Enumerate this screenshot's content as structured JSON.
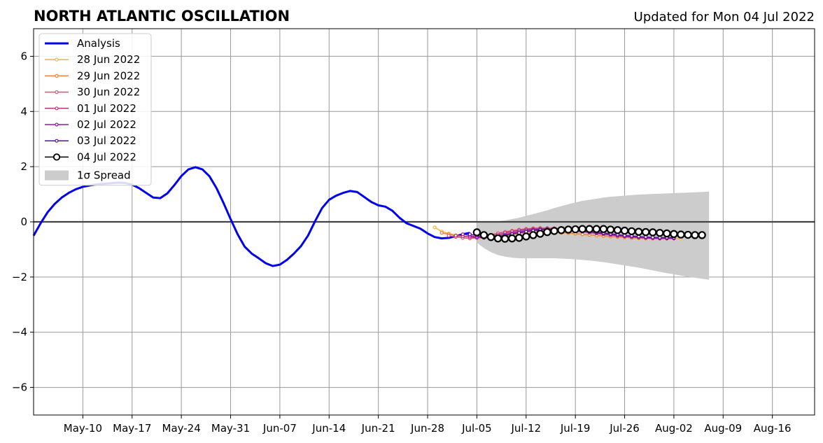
{
  "chart_data": {
    "type": "line",
    "title": "NORTH ATLANTIC OSCILLATION",
    "subtitle": "Updated for Mon 04 Jul 2022",
    "xlabel": "",
    "ylabel": "",
    "xlim": [
      "2022-05-03",
      "2022-08-22"
    ],
    "ylim": [
      -7,
      7
    ],
    "x_ticks": [
      "May-10",
      "May-17",
      "May-24",
      "May-31",
      "Jun-07",
      "Jun-14",
      "Jun-21",
      "Jun-28",
      "Jul-05",
      "Jul-12",
      "Jul-19",
      "Jul-26",
      "Aug-02",
      "Aug-09",
      "Aug-16"
    ],
    "y_ticks": [
      -6,
      -4,
      -2,
      0,
      2,
      4,
      6
    ],
    "y_tick_labels": [
      "−6",
      "−4",
      "−2",
      "0",
      "2",
      "4",
      "6"
    ],
    "grid": true,
    "legend_position": "top-left",
    "zero_line": 0,
    "analysis": {
      "name": "Analysis",
      "color": "#0000ee",
      "points": [
        [
          "2022-05-03",
          -0.5
        ],
        [
          "2022-05-04",
          -0.05
        ],
        [
          "2022-05-05",
          0.35
        ],
        [
          "2022-05-06",
          0.65
        ],
        [
          "2022-05-07",
          0.88
        ],
        [
          "2022-05-08",
          1.05
        ],
        [
          "2022-05-09",
          1.18
        ],
        [
          "2022-05-10",
          1.27
        ],
        [
          "2022-05-11",
          1.32
        ],
        [
          "2022-05-12",
          1.36
        ],
        [
          "2022-05-13",
          1.38
        ],
        [
          "2022-05-14",
          1.4
        ],
        [
          "2022-05-15",
          1.42
        ],
        [
          "2022-05-16",
          1.41
        ],
        [
          "2022-05-17",
          1.35
        ],
        [
          "2022-05-18",
          1.22
        ],
        [
          "2022-05-19",
          1.05
        ],
        [
          "2022-05-20",
          0.88
        ],
        [
          "2022-05-21",
          0.86
        ],
        [
          "2022-05-22",
          1.03
        ],
        [
          "2022-05-23",
          1.33
        ],
        [
          "2022-05-24",
          1.66
        ],
        [
          "2022-05-25",
          1.9
        ],
        [
          "2022-05-26",
          1.98
        ],
        [
          "2022-05-27",
          1.9
        ],
        [
          "2022-05-28",
          1.65
        ],
        [
          "2022-05-29",
          1.22
        ],
        [
          "2022-05-30",
          0.68
        ],
        [
          "2022-05-31",
          0.1
        ],
        [
          "2022-06-01",
          -0.45
        ],
        [
          "2022-06-02",
          -0.9
        ],
        [
          "2022-06-03",
          -1.15
        ],
        [
          "2022-06-04",
          -1.32
        ],
        [
          "2022-06-05",
          -1.5
        ],
        [
          "2022-06-06",
          -1.6
        ],
        [
          "2022-06-07",
          -1.55
        ],
        [
          "2022-06-08",
          -1.38
        ],
        [
          "2022-06-09",
          -1.15
        ],
        [
          "2022-06-10",
          -0.88
        ],
        [
          "2022-06-11",
          -0.5
        ],
        [
          "2022-06-12",
          0.02
        ],
        [
          "2022-06-13",
          0.5
        ],
        [
          "2022-06-14",
          0.8
        ],
        [
          "2022-06-15",
          0.95
        ],
        [
          "2022-06-16",
          1.05
        ],
        [
          "2022-06-17",
          1.12
        ],
        [
          "2022-06-18",
          1.08
        ],
        [
          "2022-06-19",
          0.9
        ],
        [
          "2022-06-20",
          0.72
        ],
        [
          "2022-06-21",
          0.6
        ],
        [
          "2022-06-22",
          0.55
        ],
        [
          "2022-06-23",
          0.4
        ],
        [
          "2022-06-24",
          0.15
        ],
        [
          "2022-06-25",
          -0.05
        ],
        [
          "2022-06-26",
          -0.15
        ],
        [
          "2022-06-27",
          -0.25
        ],
        [
          "2022-06-28",
          -0.42
        ],
        [
          "2022-06-29",
          -0.55
        ],
        [
          "2022-06-30",
          -0.6
        ],
        [
          "2022-07-01",
          -0.58
        ],
        [
          "2022-07-02",
          -0.52
        ],
        [
          "2022-07-03",
          -0.45
        ],
        [
          "2022-07-04",
          -0.4
        ]
      ]
    },
    "forecasts": [
      {
        "name": "28 Jun 2022",
        "color": "#f8b238",
        "start": "2022-06-29",
        "values": [
          -0.2,
          -0.35,
          -0.42,
          -0.48,
          -0.52,
          -0.54,
          -0.55,
          -0.55,
          -0.54,
          -0.52,
          -0.49,
          -0.46,
          -0.43,
          -0.4,
          -0.38,
          -0.37,
          -0.37,
          -0.38,
          -0.4,
          -0.42,
          -0.44,
          -0.46,
          -0.48,
          -0.5,
          -0.52,
          -0.54,
          -0.55,
          -0.57,
          -0.58,
          -0.6,
          -0.61,
          -0.62,
          -0.62,
          -0.62,
          -0.61,
          -0.6
        ]
      },
      {
        "name": "29 Jun 2022",
        "color": "#f07f42",
        "start": "2022-06-30",
        "values": [
          -0.4,
          -0.45,
          -0.5,
          -0.53,
          -0.55,
          -0.55,
          -0.53,
          -0.5,
          -0.46,
          -0.42,
          -0.38,
          -0.35,
          -0.33,
          -0.32,
          -0.32,
          -0.33,
          -0.35,
          -0.37,
          -0.4,
          -0.42,
          -0.45,
          -0.47,
          -0.49,
          -0.51,
          -0.53,
          -0.55,
          -0.56,
          -0.58,
          -0.59,
          -0.6,
          -0.6,
          -0.6,
          -0.59,
          -0.58
        ]
      },
      {
        "name": "30 Jun 2022",
        "color": "#db5370",
        "start": "2022-07-01",
        "values": [
          -0.5,
          -0.55,
          -0.58,
          -0.6,
          -0.58,
          -0.53,
          -0.47,
          -0.41,
          -0.36,
          -0.32,
          -0.28,
          -0.25,
          -0.23,
          -0.22,
          -0.22,
          -0.23,
          -0.25,
          -0.27,
          -0.3,
          -0.33,
          -0.36,
          -0.39,
          -0.42,
          -0.45,
          -0.48,
          -0.51,
          -0.53,
          -0.55,
          -0.57,
          -0.58,
          -0.59,
          -0.6,
          -0.6
        ]
      },
      {
        "name": "01 Jul 2022",
        "color": "#b73481",
        "start": "2022-07-02",
        "values": [
          -0.5,
          -0.52,
          -0.55,
          -0.58,
          -0.57,
          -0.52,
          -0.46,
          -0.4,
          -0.35,
          -0.31,
          -0.28,
          -0.26,
          -0.25,
          -0.25,
          -0.26,
          -0.28,
          -0.3,
          -0.33,
          -0.36,
          -0.39,
          -0.42,
          -0.45,
          -0.48,
          -0.51,
          -0.53,
          -0.55,
          -0.57,
          -0.58,
          -0.59,
          -0.6,
          -0.6,
          -0.6
        ]
      },
      {
        "name": "02 Jul 2022",
        "color": "#8e1ba0",
        "start": "2022-07-03",
        "values": [
          -0.45,
          -0.5,
          -0.55,
          -0.58,
          -0.56,
          -0.51,
          -0.46,
          -0.41,
          -0.36,
          -0.32,
          -0.29,
          -0.27,
          -0.26,
          -0.26,
          -0.27,
          -0.29,
          -0.31,
          -0.34,
          -0.37,
          -0.4,
          -0.43,
          -0.46,
          -0.49,
          -0.52,
          -0.54,
          -0.56,
          -0.58,
          -0.59,
          -0.6,
          -0.6,
          -0.6
        ]
      },
      {
        "name": "03 Jul 2022",
        "color": "#5a0d9c",
        "start": "2022-07-04",
        "values": [
          -0.45,
          -0.5,
          -0.55,
          -0.57,
          -0.55,
          -0.5,
          -0.45,
          -0.4,
          -0.36,
          -0.32,
          -0.29,
          -0.27,
          -0.26,
          -0.26,
          -0.27,
          -0.29,
          -0.31,
          -0.34,
          -0.37,
          -0.4,
          -0.43,
          -0.46,
          -0.49,
          -0.51,
          -0.53,
          -0.55,
          -0.56,
          -0.57,
          -0.57,
          -0.57
        ]
      },
      {
        "name": "04 Jul 2022",
        "color": "#000000",
        "start": "2022-07-05",
        "values": [
          -0.38,
          -0.48,
          -0.55,
          -0.6,
          -0.61,
          -0.6,
          -0.58,
          -0.53,
          -0.48,
          -0.43,
          -0.37,
          -0.33,
          -0.3,
          -0.28,
          -0.27,
          -0.26,
          -0.26,
          -0.26,
          -0.26,
          -0.28,
          -0.3,
          -0.32,
          -0.34,
          -0.36,
          -0.37,
          -0.38,
          -0.4,
          -0.42,
          -0.44,
          -0.46,
          -0.47,
          -0.48,
          -0.48
        ]
      }
    ],
    "spread": {
      "name": "1σ Spread",
      "color": "#cccccc",
      "start": "2022-07-05",
      "upper": [
        0.0,
        0.0,
        0.0,
        0.02,
        0.05,
        0.1,
        0.15,
        0.22,
        0.28,
        0.35,
        0.42,
        0.5,
        0.57,
        0.64,
        0.7,
        0.76,
        0.8,
        0.84,
        0.88,
        0.91,
        0.93,
        0.95,
        0.97,
        0.99,
        1.0,
        1.01,
        1.02,
        1.03,
        1.04,
        1.05,
        1.06,
        1.07,
        1.08,
        1.1
      ],
      "lower": [
        -0.75,
        -0.95,
        -1.1,
        -1.2,
        -1.26,
        -1.3,
        -1.32,
        -1.32,
        -1.32,
        -1.32,
        -1.32,
        -1.32,
        -1.33,
        -1.34,
        -1.36,
        -1.38,
        -1.4,
        -1.43,
        -1.46,
        -1.5,
        -1.54,
        -1.58,
        -1.62,
        -1.66,
        -1.71,
        -1.76,
        -1.81,
        -1.86,
        -1.9,
        -1.95,
        -1.99,
        -2.03,
        -2.06,
        -2.1
      ]
    }
  }
}
